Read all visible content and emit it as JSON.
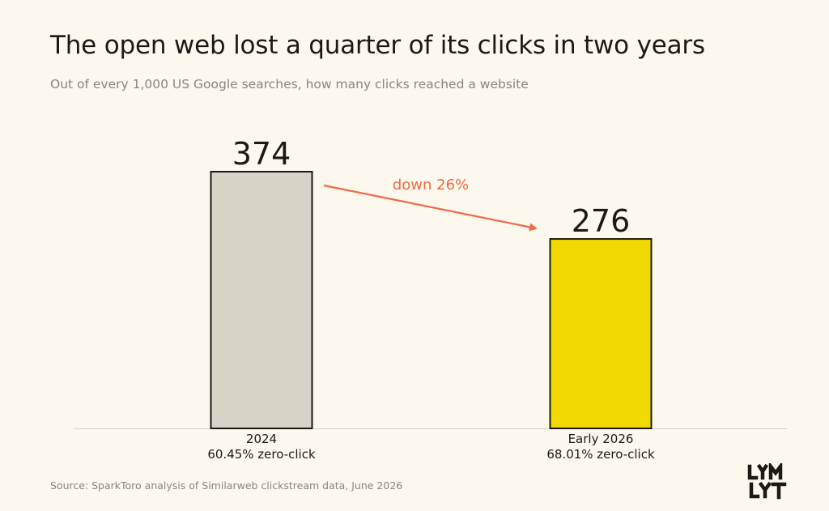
{
  "title": "The open web lost a quarter of its clicks in two years",
  "subtitle": "Out of every 1,000 US Google searches, how many clicks reached a website",
  "source": "Source: SparkToro analysis of Similarweb clickstream data, June 2026",
  "logo_text": "LYMLYT",
  "annotation": "down 26%",
  "colors": {
    "background": "#fcf8ee",
    "bar_2024": "#d8d3c7",
    "bar_2026": "#f0d800",
    "bar_stroke": "#1c1a16",
    "arrow": "#ef6a45",
    "baseline": "#d9d4c8"
  },
  "chart_data": {
    "type": "bar",
    "title": "The open web lost a quarter of its clicks in two years",
    "subtitle": "Out of every 1,000 US Google searches, how many clicks reached a website",
    "categories": [
      "2024",
      "Early 2026"
    ],
    "category_sublabels": [
      "60.45% zero-click",
      "68.01% zero-click"
    ],
    "values": [
      374,
      276
    ],
    "value_labels": [
      "374",
      "276"
    ],
    "ylim": [
      0,
      374
    ],
    "grid": false,
    "legend": "none",
    "annotations": [
      {
        "text": "down 26%",
        "from": "2024",
        "to": "Early 2026",
        "style": "arrow"
      }
    ]
  }
}
